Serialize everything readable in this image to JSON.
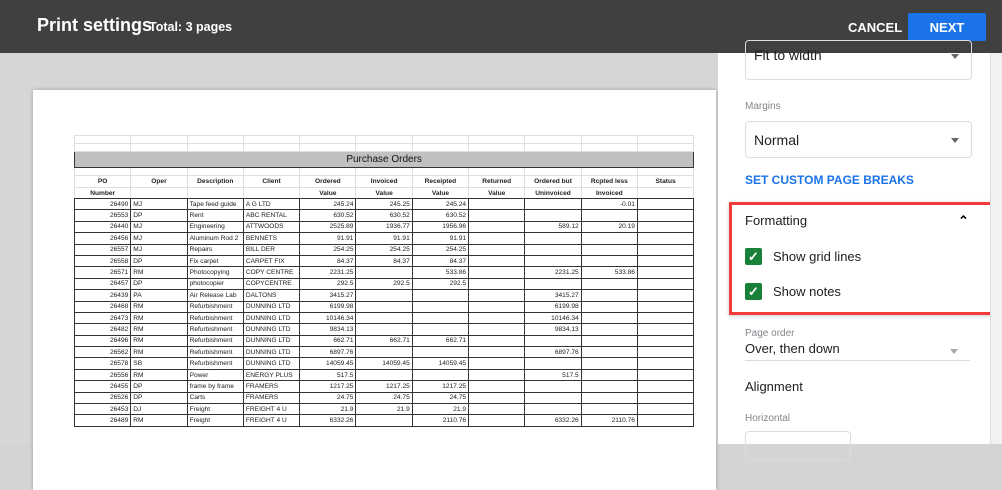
{
  "header": {
    "title": "Print settings",
    "total": "Total: 3 pages",
    "cancel": "CANCEL",
    "next": "NEXT"
  },
  "colors": {
    "accent": "#1a73e8",
    "checkbox": "#188038",
    "highlight": "#ef3b3b",
    "topbar": "#404040"
  },
  "sheet": {
    "title": "Purchase Orders",
    "headers1": [
      "PO",
      "Oper",
      "Description",
      "Client",
      "Ordered",
      "Invoiced",
      "Receipted",
      "Returned",
      "Ordered but",
      "Rcpted less",
      "Status"
    ],
    "headers2": [
      "Number",
      "",
      "",
      "",
      "Value",
      "Value",
      "Value",
      "Value",
      "Uninvoiced",
      "Invoiced",
      ""
    ],
    "rows": [
      [
        "26490",
        "MJ",
        "Tape feed guide",
        "A G LTD",
        "245.24",
        "245.25",
        "245.24",
        "",
        "",
        "-0.01",
        ""
      ],
      [
        "26553",
        "DP",
        "Rent",
        "ABC RENTAL",
        "630.52",
        "630.52",
        "630.52",
        "",
        "",
        "",
        ""
      ],
      [
        "26440",
        "MJ",
        "Engineering",
        "ATTWOODS",
        "2525.89",
        "1936.77",
        "1956.96",
        "",
        "589.12",
        "20.19",
        ""
      ],
      [
        "26456",
        "MJ",
        "Aluminum Rod 2",
        "BENNETS",
        "91.91",
        "91.91",
        "91.91",
        "",
        "",
        "",
        ""
      ],
      [
        "26557",
        "MJ",
        "Repairs",
        "BILL DER",
        "254.25",
        "254.25",
        "254.25",
        "",
        "",
        "",
        ""
      ],
      [
        "26558",
        "DP",
        "Fix carpet",
        "CARPET FIX",
        "84.37",
        "84.37",
        "84.37",
        "",
        "",
        "",
        ""
      ],
      [
        "26571",
        "RM",
        "Photocopying",
        "COPY CENTRE",
        "2231.25",
        "",
        "533.86",
        "",
        "2231.25",
        "533.86",
        ""
      ],
      [
        "26457",
        "DP",
        "photocopier",
        "COPYCENTRE",
        "292.5",
        "292.5",
        "292.5",
        "",
        "",
        "",
        ""
      ],
      [
        "26439",
        "PA",
        "Air Release Lab",
        "DALTONS",
        "3415.27",
        "",
        "",
        "",
        "3415.27",
        "",
        ""
      ],
      [
        "26468",
        "RM",
        "Refurbishment",
        "DUNNING LTD",
        "6199.98",
        "",
        "",
        "",
        "6199.98",
        "",
        ""
      ],
      [
        "26473",
        "RM",
        "Refurbishment",
        "DUNNING LTD",
        "10146.34",
        "",
        "",
        "",
        "10146.34",
        "",
        ""
      ],
      [
        "26482",
        "RM",
        "Refurbishment",
        "DUNNING LTD",
        "9834.13",
        "",
        "",
        "",
        "9834.13",
        "",
        ""
      ],
      [
        "26496",
        "RM",
        "Refurbishment",
        "DUNNING LTD",
        "662.71",
        "662.71",
        "662.71",
        "",
        "",
        "",
        ""
      ],
      [
        "26562",
        "RM",
        "Refurbishment",
        "DUNNING LTD",
        "6897.76",
        "",
        "",
        "",
        "6897.76",
        "",
        ""
      ],
      [
        "26578",
        "SB",
        "Refurbishment",
        "DUNNING LTD",
        "14059.45",
        "14059.45",
        "14059.45",
        "",
        "",
        "",
        ""
      ],
      [
        "26556",
        "RM",
        "Power",
        "ENERGY PLUS",
        "517.5",
        "",
        "",
        "",
        "517.5",
        "",
        ""
      ],
      [
        "26455",
        "DP",
        "frame by frame",
        "FRAMERS",
        "1217.25",
        "1217.25",
        "1217.25",
        "",
        "",
        "",
        ""
      ],
      [
        "26526",
        "DP",
        "Carts",
        "FRAMERS",
        "24.75",
        "24.75",
        "24.75",
        "",
        "",
        "",
        ""
      ],
      [
        "26453",
        "DJ",
        "Freight",
        "FREIGHT 4 U",
        "21.9",
        "21.9",
        "21.9",
        "",
        "",
        "",
        ""
      ],
      [
        "26489",
        "RM",
        "Freight",
        "FREIGHT 4 U",
        "6332.26",
        "",
        "2110.76",
        "",
        "6332.26",
        "2110.76",
        ""
      ]
    ]
  },
  "panel": {
    "scale_value": "Fit to width",
    "margins_label": "Margins",
    "margins_value": "Normal",
    "page_breaks": "SET CUSTOM PAGE BREAKS",
    "formatting": "Formatting",
    "show_grid_lines": {
      "label": "Show grid lines",
      "checked": true
    },
    "show_notes": {
      "label": "Show notes",
      "checked": true
    },
    "page_order_label": "Page order",
    "page_order_value": "Over, then down",
    "alignment": "Alignment",
    "horizontal_label": "Horizontal"
  }
}
